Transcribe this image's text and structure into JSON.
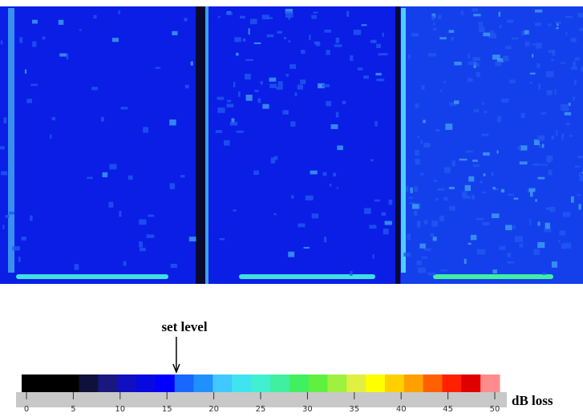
{
  "colorbar": {
    "label": "dB loss",
    "set_level_label": "set level",
    "set_level": 16,
    "xlim": [
      0,
      50
    ],
    "xticks": [
      0,
      5,
      10,
      15,
      20,
      25,
      30,
      35,
      40,
      45,
      50
    ],
    "colors": [
      "#000000",
      "#000000",
      "#000000",
      "#10103c",
      "#181880",
      "#1010c0",
      "#0808e0",
      "#0000ff",
      "#1868ff",
      "#2090ff",
      "#40c8ff",
      "#40e4f0",
      "#40f0d0",
      "#40f0a0",
      "#40f060",
      "#60f040",
      "#a0f040",
      "#e0f040",
      "#ffff00",
      "#ffd000",
      "#ffa000",
      "#ff6000",
      "#ff2000",
      "#e00000",
      "#ff8c8c"
    ]
  }
}
